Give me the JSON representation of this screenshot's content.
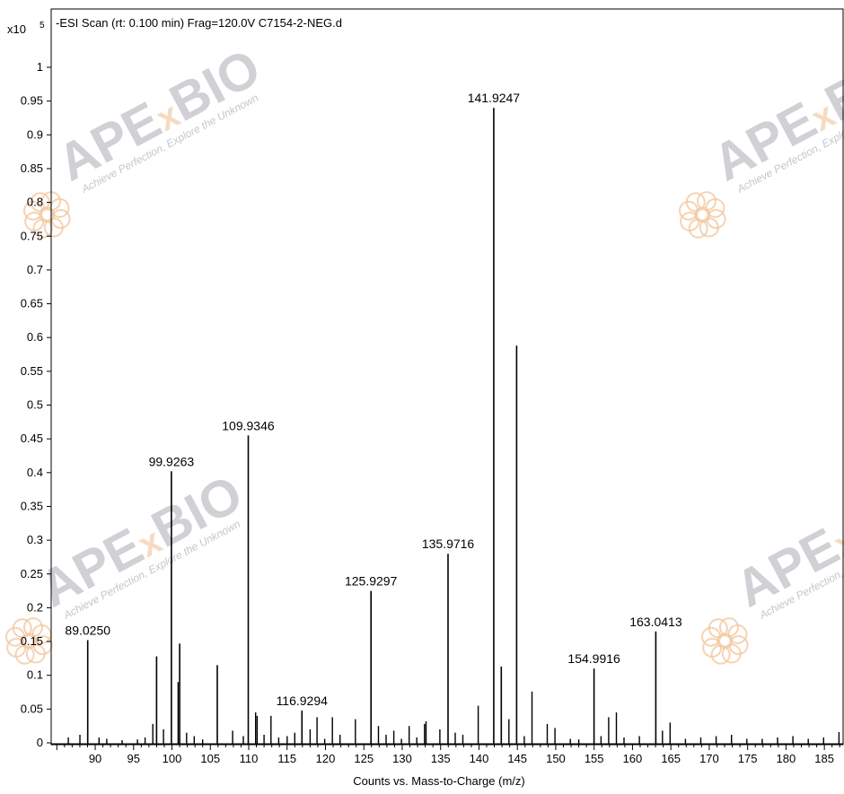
{
  "chart_data": {
    "type": "bar",
    "title": "-ESI Scan (rt: 0.100 min) Frag=120.0V C7154-2-NEG.d",
    "xlabel": "Counts vs. Mass-to-Charge (m/z)",
    "ylabel": "",
    "y_multiplier_base": "x10",
    "y_multiplier_exp": "5",
    "xlim": [
      85,
      188
    ],
    "ylim": [
      0,
      1.0
    ],
    "x_ticks": [
      90,
      95,
      100,
      105,
      110,
      115,
      120,
      125,
      130,
      135,
      140,
      145,
      150,
      155,
      160,
      165,
      170,
      175,
      180,
      185
    ],
    "y_ticks": [
      0,
      0.05,
      0.1,
      0.15,
      0.2,
      0.25,
      0.3,
      0.35,
      0.4,
      0.45,
      0.5,
      0.55,
      0.6,
      0.65,
      0.7,
      0.75,
      0.8,
      0.85,
      0.9,
      0.95,
      1
    ],
    "y_tick_labels": [
      "0",
      "0.05",
      "0.1",
      "0.15",
      "0.2",
      "0.25",
      "0.3",
      "0.35",
      "0.4",
      "0.45",
      "0.5",
      "0.55",
      "0.6",
      "0.65",
      "0.7",
      "0.75",
      "0.8",
      "0.85",
      "0.9",
      "0.95",
      "1"
    ],
    "grid": false,
    "peaks": [
      {
        "mz": 86.5,
        "value": 0.008
      },
      {
        "mz": 88.0,
        "value": 0.012
      },
      {
        "mz": 89.025,
        "value": 0.152,
        "label": "89.0250"
      },
      {
        "mz": 90.5,
        "value": 0.008
      },
      {
        "mz": 91.5,
        "value": 0.006
      },
      {
        "mz": 93.5,
        "value": 0.004
      },
      {
        "mz": 95.5,
        "value": 0.005
      },
      {
        "mz": 96.5,
        "value": 0.008
      },
      {
        "mz": 97.5,
        "value": 0.028
      },
      {
        "mz": 98.0,
        "value": 0.128
      },
      {
        "mz": 98.9,
        "value": 0.02
      },
      {
        "mz": 99.9263,
        "value": 0.402,
        "label": "99.9263"
      },
      {
        "mz": 100.8,
        "value": 0.09
      },
      {
        "mz": 101.0,
        "value": 0.147
      },
      {
        "mz": 101.9,
        "value": 0.015
      },
      {
        "mz": 102.9,
        "value": 0.01
      },
      {
        "mz": 104.0,
        "value": 0.005
      },
      {
        "mz": 105.9,
        "value": 0.115
      },
      {
        "mz": 107.9,
        "value": 0.018
      },
      {
        "mz": 109.3,
        "value": 0.01
      },
      {
        "mz": 109.9346,
        "value": 0.455,
        "label": "109.9346"
      },
      {
        "mz": 110.9,
        "value": 0.045
      },
      {
        "mz": 111.1,
        "value": 0.04
      },
      {
        "mz": 112.0,
        "value": 0.012
      },
      {
        "mz": 112.9,
        "value": 0.04
      },
      {
        "mz": 113.9,
        "value": 0.008
      },
      {
        "mz": 115.0,
        "value": 0.01
      },
      {
        "mz": 116.0,
        "value": 0.015
      },
      {
        "mz": 116.9294,
        "value": 0.048,
        "label": "116.9294"
      },
      {
        "mz": 118.0,
        "value": 0.02
      },
      {
        "mz": 118.9,
        "value": 0.038
      },
      {
        "mz": 119.9,
        "value": 0.006
      },
      {
        "mz": 120.9,
        "value": 0.038
      },
      {
        "mz": 121.9,
        "value": 0.012
      },
      {
        "mz": 123.9,
        "value": 0.035
      },
      {
        "mz": 125.9297,
        "value": 0.225,
        "label": "125.9297"
      },
      {
        "mz": 126.9,
        "value": 0.025
      },
      {
        "mz": 127.9,
        "value": 0.012
      },
      {
        "mz": 128.9,
        "value": 0.018
      },
      {
        "mz": 129.9,
        "value": 0.006
      },
      {
        "mz": 130.9,
        "value": 0.025
      },
      {
        "mz": 131.9,
        "value": 0.008
      },
      {
        "mz": 132.9,
        "value": 0.028
      },
      {
        "mz": 133.1,
        "value": 0.032
      },
      {
        "mz": 134.9,
        "value": 0.02
      },
      {
        "mz": 135.9716,
        "value": 0.28,
        "label": "135.9716"
      },
      {
        "mz": 136.9,
        "value": 0.015
      },
      {
        "mz": 137.9,
        "value": 0.012
      },
      {
        "mz": 139.9,
        "value": 0.055
      },
      {
        "mz": 141.9247,
        "value": 0.94,
        "label": "141.9247"
      },
      {
        "mz": 142.9,
        "value": 0.113
      },
      {
        "mz": 143.9,
        "value": 0.035
      },
      {
        "mz": 144.9,
        "value": 0.588
      },
      {
        "mz": 145.9,
        "value": 0.01
      },
      {
        "mz": 146.9,
        "value": 0.076
      },
      {
        "mz": 148.9,
        "value": 0.028
      },
      {
        "mz": 149.9,
        "value": 0.022
      },
      {
        "mz": 151.9,
        "value": 0.006
      },
      {
        "mz": 153.0,
        "value": 0.005
      },
      {
        "mz": 154.9916,
        "value": 0.11,
        "label": "154.9916"
      },
      {
        "mz": 155.9,
        "value": 0.01
      },
      {
        "mz": 156.9,
        "value": 0.038
      },
      {
        "mz": 157.9,
        "value": 0.045
      },
      {
        "mz": 158.9,
        "value": 0.008
      },
      {
        "mz": 160.9,
        "value": 0.01
      },
      {
        "mz": 163.0413,
        "value": 0.165,
        "label": "163.0413"
      },
      {
        "mz": 163.9,
        "value": 0.018
      },
      {
        "mz": 164.9,
        "value": 0.03
      },
      {
        "mz": 166.9,
        "value": 0.006
      },
      {
        "mz": 168.9,
        "value": 0.008
      },
      {
        "mz": 170.9,
        "value": 0.01
      },
      {
        "mz": 172.9,
        "value": 0.012
      },
      {
        "mz": 174.9,
        "value": 0.006
      },
      {
        "mz": 176.9,
        "value": 0.006
      },
      {
        "mz": 178.9,
        "value": 0.008
      },
      {
        "mz": 180.9,
        "value": 0.01
      },
      {
        "mz": 182.9,
        "value": 0.006
      },
      {
        "mz": 184.9,
        "value": 0.008
      },
      {
        "mz": 186.9,
        "value": 0.016
      }
    ]
  },
  "watermark": {
    "brand": "APExBIO",
    "brand_left": "APE",
    "brand_x": "x",
    "brand_right": "BIO",
    "tagline": "Achieve Perfection, Explore the Unknown"
  }
}
